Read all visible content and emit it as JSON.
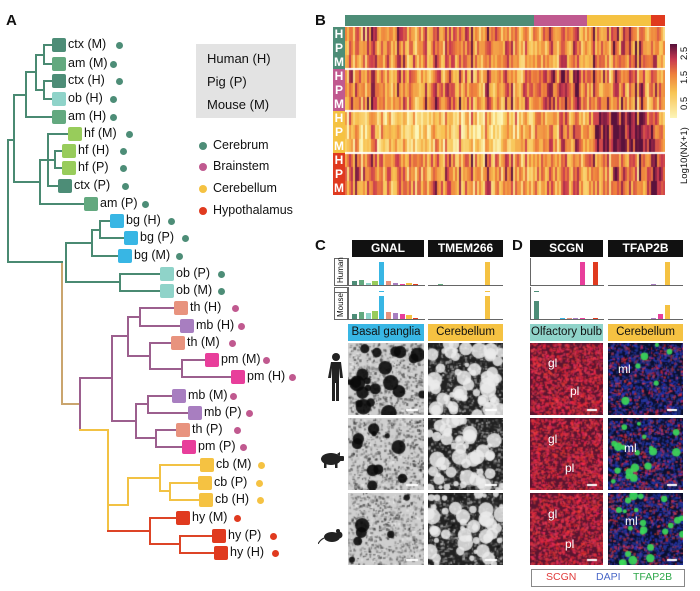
{
  "panels": {
    "a": "A",
    "b": "B",
    "c": "C",
    "d": "D"
  },
  "tree": {
    "leaves": [
      {
        "label": "ctx (M)",
        "color": "#4d8d77",
        "region": "cerebrum"
      },
      {
        "label": "am (M)",
        "color": "#63a97f",
        "region": "cerebrum"
      },
      {
        "label": "ctx (H)",
        "color": "#4d8d77",
        "region": "cerebrum"
      },
      {
        "label": "ob (H)",
        "color": "#8fd3c9",
        "region": "cerebrum"
      },
      {
        "label": "am (H)",
        "color": "#63a97f",
        "region": "cerebrum"
      },
      {
        "label": "hf (M)",
        "color": "#98cc5b",
        "region": "cerebrum"
      },
      {
        "label": "hf (H)",
        "color": "#98cc5b",
        "region": "cerebrum"
      },
      {
        "label": "hf (P)",
        "color": "#98cc5b",
        "region": "cerebrum"
      },
      {
        "label": "ctx (P)",
        "color": "#4d8d77",
        "region": "cerebrum"
      },
      {
        "label": "am (P)",
        "color": "#63a97f",
        "region": "cerebrum"
      },
      {
        "label": "bg (H)",
        "color": "#38b6e4",
        "region": "cerebrum"
      },
      {
        "label": "bg (P)",
        "color": "#38b6e4",
        "region": "cerebrum"
      },
      {
        "label": "bg (M)",
        "color": "#38b6e4",
        "region": "cerebrum"
      },
      {
        "label": "ob (P)",
        "color": "#8fd3c9",
        "region": "cerebrum"
      },
      {
        "label": "ob (M)",
        "color": "#8fd3c9",
        "region": "cerebrum"
      },
      {
        "label": "th (H)",
        "color": "#e8937e",
        "region": "brainstem"
      },
      {
        "label": "mb (H)",
        "color": "#a87ec0",
        "region": "brainstem"
      },
      {
        "label": "th (M)",
        "color": "#e8937e",
        "region": "brainstem"
      },
      {
        "label": "pm (M)",
        "color": "#e83e9b",
        "region": "brainstem"
      },
      {
        "label": "pm (H)",
        "color": "#e83e9b",
        "region": "brainstem"
      },
      {
        "label": "mb (M)",
        "color": "#a87ec0",
        "region": "brainstem"
      },
      {
        "label": "mb (P)",
        "color": "#a87ec0",
        "region": "brainstem"
      },
      {
        "label": "th (P)",
        "color": "#e8937e",
        "region": "brainstem"
      },
      {
        "label": "pm (P)",
        "color": "#e83e9b",
        "region": "brainstem"
      },
      {
        "label": "cb (M)",
        "color": "#f5c242",
        "region": "cerebellum"
      },
      {
        "label": "cb (P)",
        "color": "#f5c242",
        "region": "cerebellum"
      },
      {
        "label": "cb (H)",
        "color": "#f5c242",
        "region": "cerebellum"
      },
      {
        "label": "hy (M)",
        "color": "#e03a1f",
        "region": "hypothalamus"
      },
      {
        "label": "hy (P)",
        "color": "#e03a1f",
        "region": "hypothalamus"
      },
      {
        "label": "hy (H)",
        "color": "#e03a1f",
        "region": "hypothalamus"
      }
    ]
  },
  "species_key": [
    "Human (H)",
    "Pig (P)",
    "Mouse (M)"
  ],
  "region_legend": [
    {
      "label": "Cerebrum",
      "color": "#4d8d77"
    },
    {
      "label": "Brainstem",
      "color": "#c0598f"
    },
    {
      "label": "Cerebellum",
      "color": "#f5c242"
    },
    {
      "label": "Hypothalamus",
      "color": "#e03a1f"
    }
  ],
  "heatmap": {
    "row_groups": [
      {
        "letters": [
          "H",
          "P",
          "M"
        ],
        "color": "#4d8d77"
      },
      {
        "letters": [
          "H",
          "P",
          "M"
        ],
        "color": "#c0598f"
      },
      {
        "letters": [
          "H",
          "P",
          "M"
        ],
        "color": "#f5c242"
      },
      {
        "letters": [
          "H",
          "P",
          "M"
        ],
        "color": "#e03a1f"
      }
    ],
    "top_bar": [
      {
        "color": "#4d8d77",
        "fraction": 0.59
      },
      {
        "color": "#c0598f",
        "fraction": 0.165
      },
      {
        "color": "#f5c242",
        "fraction": 0.2
      },
      {
        "color": "#e03a1f",
        "fraction": 0.045
      }
    ],
    "scale_ticks": [
      "2.5",
      "1.5",
      "0.5"
    ],
    "scale_label": "Log10(NX+1)"
  },
  "panel_c": {
    "genes": [
      "GNAL",
      "TMEM266"
    ],
    "species": [
      "Human",
      "Pig",
      "Mouse"
    ],
    "tissues": [
      {
        "label": "Basal ganglia",
        "color": "#38b6e4"
      },
      {
        "label": "Cerebellum",
        "color": "#f5c242"
      }
    ]
  },
  "panel_d": {
    "genes": [
      "SCGN",
      "TFAP2B"
    ],
    "tissues": [
      {
        "label": "Olfactory bulb",
        "color": "#8fd3c9"
      },
      {
        "label": "Cerebellum",
        "color": "#f5c242"
      }
    ],
    "layer_labels": {
      "gl": "gl",
      "pl": "pl",
      "ml": "ml"
    },
    "stain_legend": [
      {
        "label": "SCGN",
        "color": "#e03a3a"
      },
      {
        "label": "DAPI",
        "color": "#4a68c8"
      },
      {
        "label": "TFAP2B",
        "color": "#2ea84a"
      }
    ]
  },
  "bar_palette": [
    "#4d8d77",
    "#63a97f",
    "#8fd3c9",
    "#98cc5b",
    "#38b6e4",
    "#e8937e",
    "#a87ec0",
    "#e83e9b",
    "#f5c242",
    "#e03a1f"
  ]
}
